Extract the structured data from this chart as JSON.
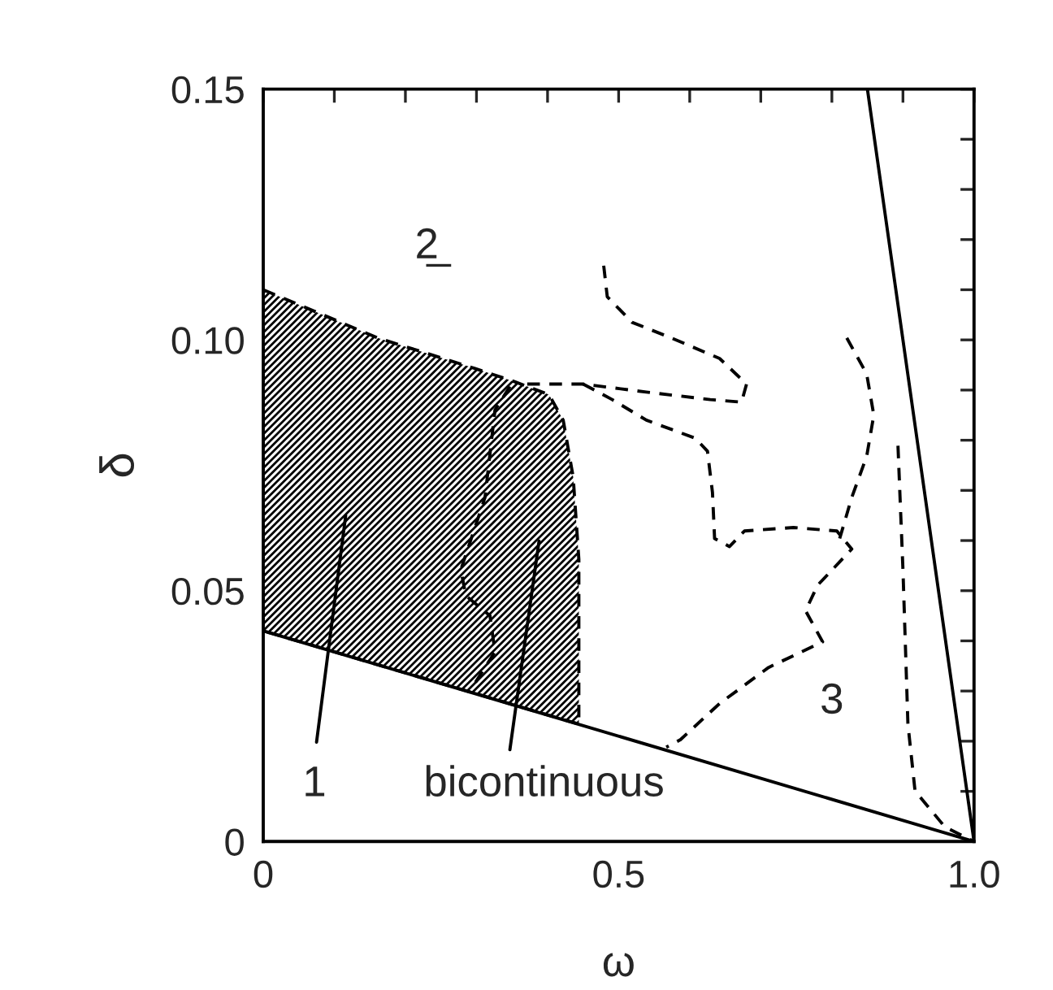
{
  "chart_data": {
    "type": "line",
    "xlabel": "ω",
    "ylabel": "δ",
    "xlim": [
      0,
      1.0
    ],
    "ylim": [
      0,
      0.15
    ],
    "xticks": [
      0,
      {
        "value": 0.1,
        "label": null
      },
      {
        "value": 0.2,
        "label": null
      },
      {
        "value": 0.3,
        "label": null
      },
      {
        "value": 0.4,
        "label": null
      },
      0.5,
      {
        "value": 0.6,
        "label": null
      },
      {
        "value": 0.7,
        "label": null
      },
      {
        "value": 0.8,
        "label": null
      },
      {
        "value": 0.9,
        "label": null
      },
      {
        "value": 1.0,
        "label": "1.0"
      }
    ],
    "yticks": [
      0,
      {
        "value": 0.01,
        "label": null
      },
      {
        "value": 0.02,
        "label": null
      },
      {
        "value": 0.03,
        "label": null
      },
      {
        "value": 0.04,
        "label": null
      },
      0.05,
      {
        "value": 0.06,
        "label": null
      },
      {
        "value": 0.07,
        "label": null
      },
      {
        "value": 0.08,
        "label": null
      },
      {
        "value": 0.09,
        "label": null
      },
      {
        "value": 0.1,
        "label": "0.10"
      },
      {
        "value": 0.11,
        "label": null
      },
      {
        "value": 0.12,
        "label": null
      },
      {
        "value": 0.13,
        "label": null
      },
      {
        "value": 0.14,
        "label": null
      },
      0.15
    ],
    "grid": false,
    "legend": false,
    "marker": "none",
    "series": [
      {
        "type": "area",
        "color": "#000000",
        "line_style": "dashed",
        "x": [
          0,
          0.161,
          0.298,
          0.353,
          0.402,
          0.422,
          0.436,
          0.444,
          0.444,
          0
        ],
        "values": [
          0.11,
          0.1004,
          0.0943,
          0.0917,
          0.0891,
          0.084,
          0.0727,
          0.0563,
          0.0234,
          0.042
        ]
      },
      {
        "color": "#000000",
        "line_style": "solid",
        "x": [
          0,
          1.0
        ],
        "values": [
          0.042,
          0
        ]
      },
      {
        "color": "#000000",
        "line_style": "solid",
        "x": [
          0.85,
          1.0
        ],
        "values": [
          0.15,
          0
        ]
      },
      {
        "color": "#000000",
        "line_style": "dashed",
        "x": [
          0.347,
          0.326,
          0.312,
          0.278,
          0.285,
          0.319,
          0.326,
          0.298
        ],
        "values": [
          0.0907,
          0.086,
          0.0686,
          0.0542,
          0.049,
          0.045,
          0.0378,
          0.0316
        ]
      },
      {
        "color": "#000000",
        "line_style": "dashed",
        "x": [
          0.479,
          0.484,
          0.519,
          0.574,
          0.642,
          0.68,
          0.673,
          0.629,
          0.539,
          0.45,
          0.367
        ],
        "values": [
          0.1148,
          0.1086,
          0.1035,
          0.1004,
          0.0963,
          0.0912,
          0.0876,
          0.0881,
          0.0896,
          0.0912,
          0.0912
        ]
      },
      {
        "color": "#000000",
        "line_style": "dashed",
        "x": [
          0.45,
          0.491,
          0.539,
          0.608,
          0.625,
          0.632,
          0.635,
          0.656,
          0.677,
          0.746,
          0.807,
          0.828,
          0.78,
          0.763,
          0.787,
          0.711,
          0.642,
          0.587,
          0.567
        ],
        "values": [
          0.0912,
          0.0881,
          0.084,
          0.0804,
          0.0778,
          0.0696,
          0.0604,
          0.0588,
          0.0619,
          0.0626,
          0.0619,
          0.0583,
          0.0511,
          0.046,
          0.0398,
          0.0347,
          0.0275,
          0.0203,
          0.0188
        ]
      },
      {
        "color": "#000000",
        "line_style": "dashed",
        "x": [
          0.821,
          0.849,
          0.859,
          0.849,
          0.828,
          0.811
        ],
        "values": [
          0.1004,
          0.0932,
          0.085,
          0.0768,
          0.0686,
          0.0604
        ]
      },
      {
        "color": "#000000",
        "line_style": "dashed",
        "x": [
          0.893,
          0.9,
          0.907,
          0.917,
          0.959,
          1.0
        ],
        "values": [
          0.0789,
          0.0542,
          0.0234,
          0.0101,
          0.0029,
          0
        ]
      },
      {
        "color": "#000000",
        "line_style": "solid",
        "x": [
          0.075,
          0.116
        ],
        "values": [
          0.0198,
          0.065
        ]
      },
      {
        "color": "#000000",
        "line_style": "solid",
        "x": [
          0.347,
          0.388
        ],
        "values": [
          0.0183,
          0.0599
        ]
      }
    ],
    "annotations": [
      "2̲",
      "3",
      "1",
      "bicontinuous"
    ]
  }
}
